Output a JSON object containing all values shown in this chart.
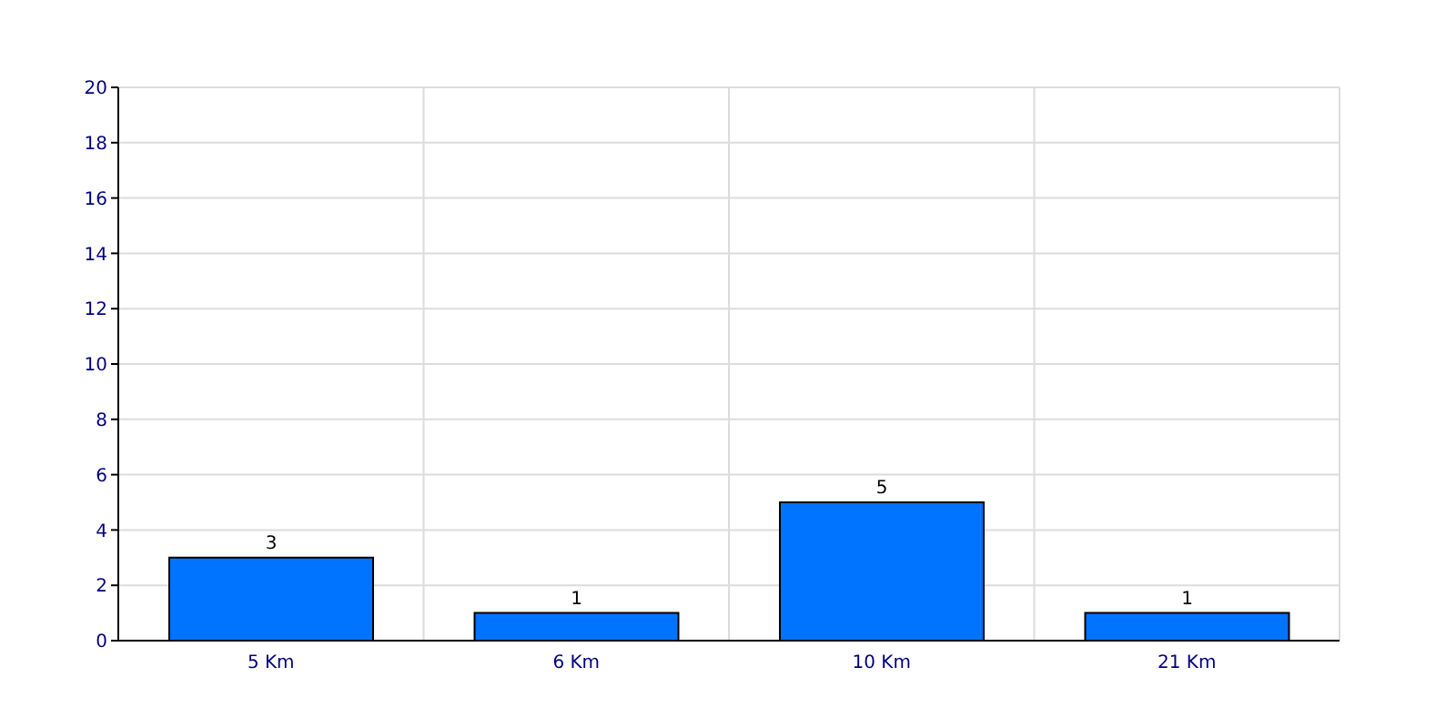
{
  "chart_data": {
    "type": "bar",
    "categories": [
      "5 Km",
      "6 Km",
      "10 Km",
      "21 Km"
    ],
    "values": [
      3,
      1,
      5,
      1
    ],
    "color": "#0073ff",
    "ylim": [
      0,
      20
    ],
    "yticks": [
      0,
      2,
      4,
      6,
      8,
      10,
      12,
      14,
      16,
      18,
      20
    ],
    "grid": true,
    "data_labels": true
  }
}
